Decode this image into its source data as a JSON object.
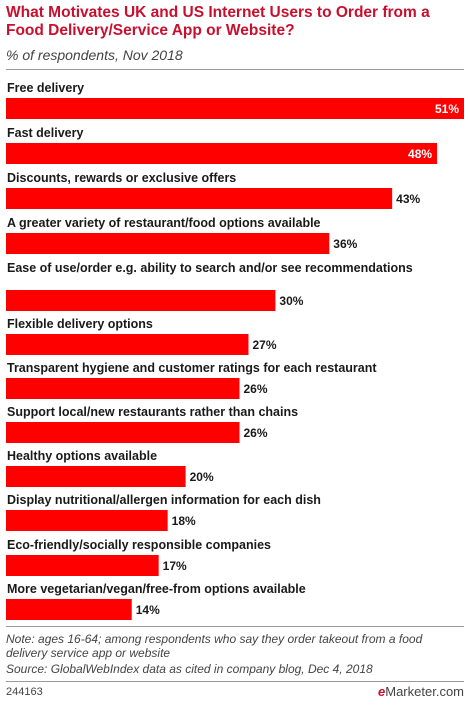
{
  "chart_data": {
    "type": "bar",
    "title": "What Motivates UK and US Internet Users to Order from a Food Delivery/Service App or Website?",
    "subtitle": "% of respondents, Nov 2018",
    "categories": [
      "Free delivery",
      "Fast delivery",
      "Discounts, rewards or exclusive offers",
      "A greater variety of restaurant/food options available",
      "Ease of use/order e.g. ability to search and/or see recommendations",
      "Flexible delivery options",
      "Transparent hygiene and customer ratings for each restaurant",
      "Support local/new restaurants rather than chains",
      "Healthy options available",
      "Display nutritional/allergen information for each dish",
      "Eco-friendly/socially responsible companies",
      "More vegetarian/vegan/free-from options available"
    ],
    "values": [
      51,
      48,
      43,
      36,
      30,
      27,
      26,
      26,
      20,
      18,
      17,
      14
    ],
    "value_suffix": "%",
    "xlim": [
      0,
      51
    ],
    "bar_color": "#ff0000",
    "grid": false,
    "note": "Note: ages 16-64; among respondents who say they order takeout from a food delivery service app or website",
    "source": "Source: GlobalWebIndex data as cited in company blog, Dec 4, 2018",
    "chart_id": "244163",
    "brand": {
      "prefix": "e",
      "name": "Marketer",
      "suffix": ".com"
    }
  }
}
